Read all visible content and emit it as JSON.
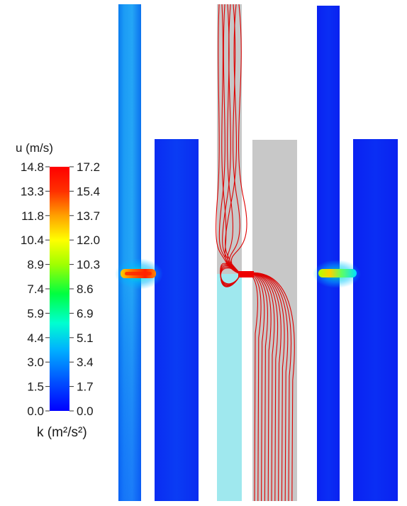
{
  "legend": {
    "title_top": "u (m/s)",
    "title_bottom": "k (m²/s²)",
    "u_ticks": [
      "14.8",
      "13.3",
      "11.8",
      "10.4",
      "8.9",
      "7.4",
      "5.9",
      "4.4",
      "3.0",
      "1.5",
      "0.0"
    ],
    "k_ticks": [
      "17.2",
      "15.4",
      "13.7",
      "12.0",
      "10.3",
      "8.6",
      "6.9",
      "5.1",
      "3.4",
      "1.7",
      "0.0"
    ],
    "colormap": [
      "#0000ff",
      "#0050ff",
      "#00b0ff",
      "#00ffd0",
      "#00ff40",
      "#a0ff00",
      "#ffff00",
      "#ffa000",
      "#ff3000",
      "#ff0000"
    ]
  },
  "colors": {
    "streamline": "#dd0000",
    "solid_gray": "#c8c8c8",
    "channel_light": "#9fe8ee"
  },
  "panels": [
    {
      "name": "velocity-contour-panel",
      "field": "u"
    },
    {
      "name": "streamline-panel",
      "field": "streamlines"
    },
    {
      "name": "turbulent-kinetic-energy-panel",
      "field": "k"
    }
  ]
}
